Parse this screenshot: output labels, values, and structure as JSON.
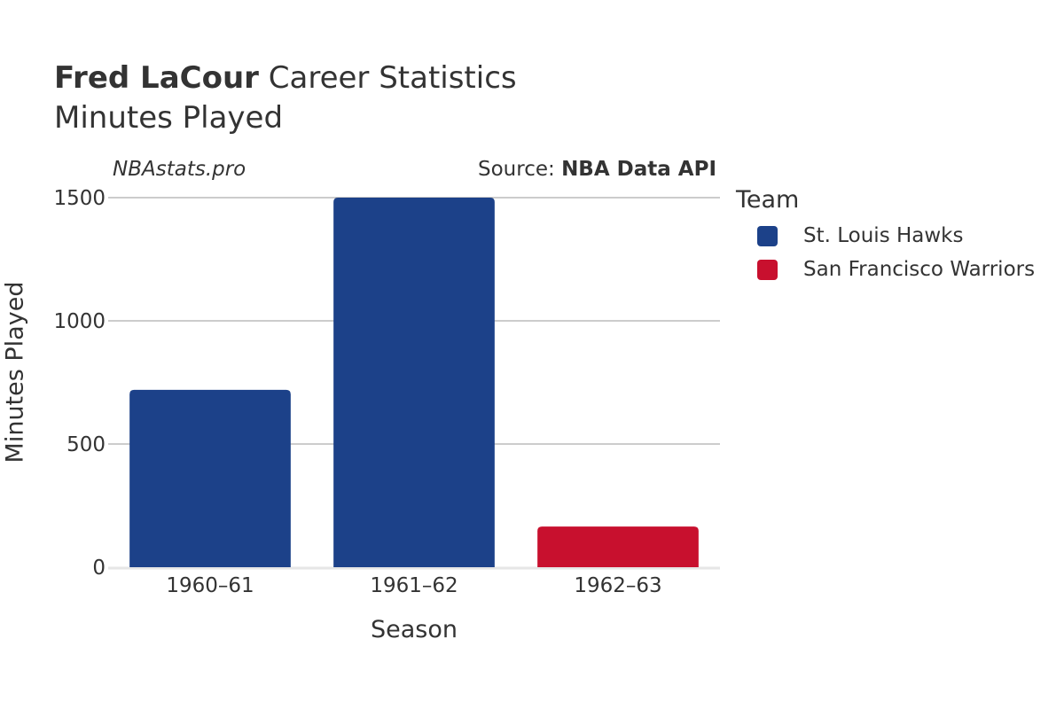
{
  "header": {
    "title_bold": "Fred LaCour",
    "title_rest": "Career Statistics",
    "subtitle": "Minutes Played",
    "watermark": "NBAstats.pro",
    "source_prefix": "Source: ",
    "source_name": "NBA Data API"
  },
  "legend": {
    "title": "Team",
    "items": [
      {
        "label": "St. Louis Hawks",
        "color": "#1c4189"
      },
      {
        "label": "San Francisco Warriors",
        "color": "#c8102e"
      }
    ]
  },
  "chart_data": {
    "type": "bar",
    "title": "Fred LaCour Career Statistics",
    "subtitle": "Minutes Played",
    "xlabel": "Season",
    "ylabel": "Minutes Played",
    "categories": [
      "1960–61",
      "1961–62",
      "1962–63"
    ],
    "values": [
      720,
      1500,
      165
    ],
    "teams": [
      "St. Louis Hawks",
      "St. Louis Hawks",
      "San Francisco Warriors"
    ],
    "colors": [
      "#1c4189",
      "#1c4189",
      "#c8102e"
    ],
    "ylim": [
      0,
      1500
    ],
    "yticks": [
      0,
      500,
      1000,
      1500
    ],
    "grid": true,
    "legend_position": "right"
  }
}
